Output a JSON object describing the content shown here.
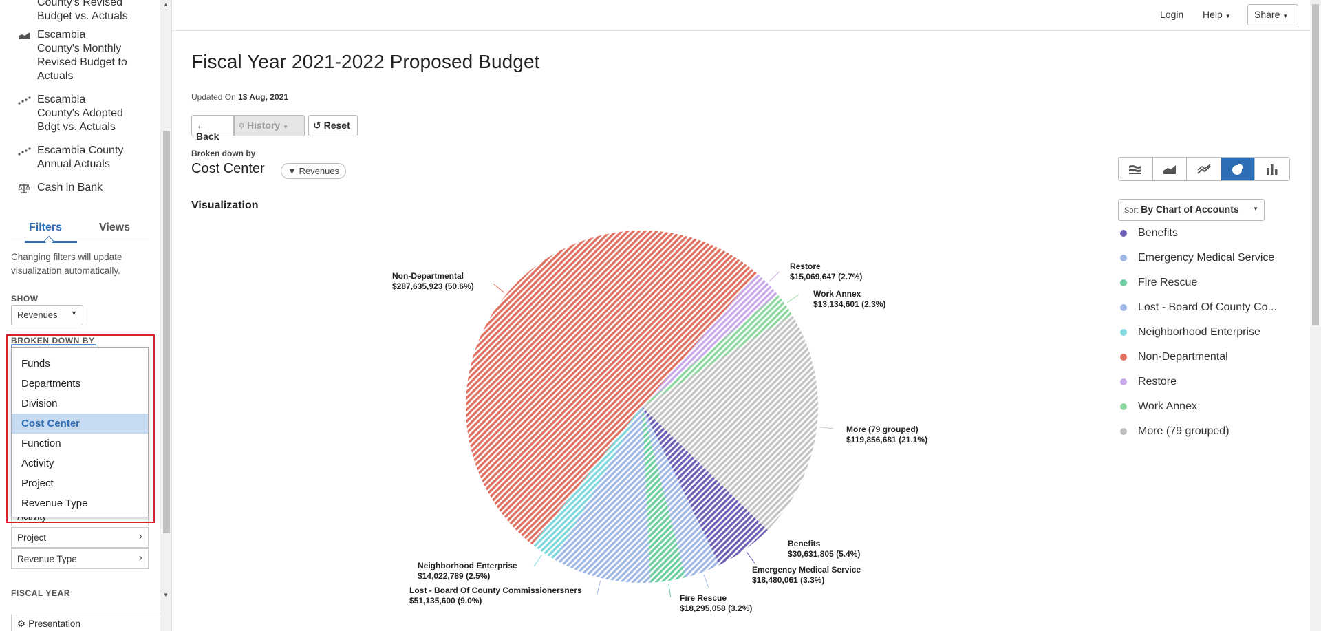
{
  "nav": {
    "items": [
      {
        "label": "County's Revised Budget vs. Actuals",
        "lines": [
          "County's Revised",
          "Budget vs. Actuals"
        ],
        "icon": "area-chart-icon"
      },
      {
        "label": "Escambia County's Monthly Revised Budget to Actuals",
        "lines": [
          "Escambia",
          "County's Monthly",
          "Revised Budget to",
          "Actuals"
        ],
        "icon": "area-chart-icon"
      },
      {
        "label": "Escambia County's Adopted Bdgt vs. Actuals",
        "lines": [
          "Escambia",
          "County's Adopted",
          "Bdgt vs. Actuals"
        ],
        "icon": "scatter-icon"
      },
      {
        "label": "Escambia County Annual Actuals",
        "lines": [
          "Escambia County",
          "Annual Actuals"
        ],
        "icon": "scatter-icon"
      },
      {
        "label": "Cash in Bank",
        "lines": [
          "Cash in Bank"
        ],
        "icon": "scale-icon"
      }
    ]
  },
  "tabs": {
    "filters": "Filters",
    "views": "Views"
  },
  "filter_hint": "Changing filters will update visualization automatically.",
  "show": {
    "label": "SHOW",
    "value": "Revenues"
  },
  "broken_down": {
    "label": "BROKEN DOWN BY",
    "options": [
      "Funds",
      "Departments",
      "Division",
      "Cost Center",
      "Function",
      "Activity",
      "Project",
      "Revenue Type"
    ],
    "selected": "Cost Center"
  },
  "filter_rows": {
    "activity": "Activity",
    "project": "Project",
    "revenue_type": "Revenue Type"
  },
  "fiscal_year_label": "FISCAL YEAR",
  "presentation": "Presentation",
  "topbar": {
    "login": "Login",
    "help": "Help",
    "share": "Share"
  },
  "page": {
    "title": "Fiscal Year 2021-2022 Proposed Budget",
    "updated_prefix": "Updated On",
    "updated_date": "13 Aug, 2021",
    "back": "Back",
    "history": "History",
    "reset": "Reset",
    "broken_down_label": "Broken down by",
    "broken_down_value": "Cost Center",
    "revenues_pill": "Revenues",
    "visualization": "Visualization",
    "sort_prefix": "Sort",
    "sort_value": "By Chart of Accounts"
  },
  "legend": [
    {
      "name": "Benefits",
      "color": "#6a5fb5"
    },
    {
      "name": "Emergency Medical Service",
      "color": "#9fb8e6"
    },
    {
      "name": "Fire Rescue",
      "color": "#6dcfa0"
    },
    {
      "name": "Lost - Board Of County Co...",
      "color": "#9fb8e6"
    },
    {
      "name": "Neighborhood Enterprise",
      "color": "#7fd8dc"
    },
    {
      "name": "Non-Departmental",
      "color": "#e07060"
    },
    {
      "name": "Restore",
      "color": "#c8a8e8"
    },
    {
      "name": "Work Annex",
      "color": "#8ed8a0"
    },
    {
      "name": "More (79 grouped)",
      "color": "#bdbdbd"
    }
  ],
  "chart_data": {
    "type": "pie",
    "title": "Fiscal Year 2021-2022 Proposed Budget",
    "slices": [
      {
        "name": "Non-Departmental",
        "value": 287635923,
        "percent": 50.6,
        "label_value": "$287,635,923 (50.6%)",
        "color": "#e07060"
      },
      {
        "name": "Restore",
        "value": 15069647,
        "percent": 2.7,
        "label_value": "$15,069,647 (2.7%)",
        "color": "#c8a8e8"
      },
      {
        "name": "Work Annex",
        "value": 13134601,
        "percent": 2.3,
        "label_value": "$13,134,601 (2.3%)",
        "color": "#8ed8a0"
      },
      {
        "name": "More (79 grouped)",
        "value": 119856681,
        "percent": 21.1,
        "label_value": "$119,856,681 (21.1%)",
        "color": "#c4c4c4"
      },
      {
        "name": "Benefits",
        "value": 30631805,
        "percent": 5.4,
        "label_value": "$30,631,805 (5.4%)",
        "color": "#6a5fb5"
      },
      {
        "name": "Emergency Medical Service",
        "value": 18480061,
        "percent": 3.3,
        "label_value": "$18,480,061 (3.3%)",
        "color": "#9fb8e6"
      },
      {
        "name": "Fire Rescue",
        "value": 18295058,
        "percent": 3.2,
        "label_value": "$18,295,058 (3.2%)",
        "color": "#6dcfa0"
      },
      {
        "name": "Lost - Board Of County Commissionersners",
        "value": 51135600,
        "percent": 9.0,
        "label_value": "$51,135,600 (9.0%)",
        "color": "#9fb8e6"
      },
      {
        "name": "Neighborhood Enterprise",
        "value": 14022789,
        "percent": 2.5,
        "label_value": "$14,022,789 (2.5%)",
        "color": "#7fd8dc"
      }
    ]
  }
}
